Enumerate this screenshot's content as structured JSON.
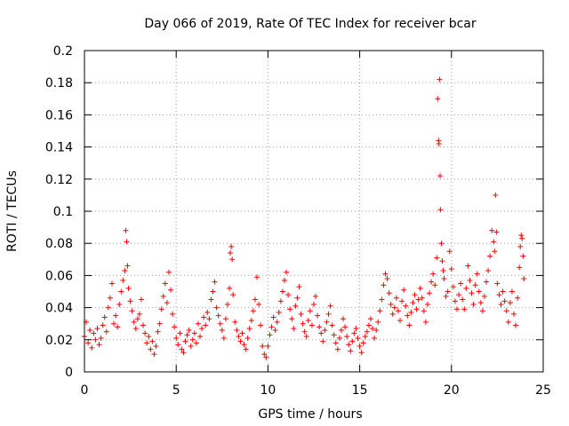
{
  "chart_data": {
    "type": "scatter",
    "title": "Day 066 of 2019, Rate Of TEC Index for receiver bcar",
    "xlabel": "GPS time / hours",
    "ylabel": "ROTI / TECUs",
    "xlim": [
      0,
      25
    ],
    "ylim": [
      0,
      0.2
    ],
    "xticks": [
      0,
      5,
      10,
      15,
      20,
      25
    ],
    "yticks": [
      0,
      0.02,
      0.04,
      0.06,
      0.08,
      0.1,
      0.12,
      0.14,
      0.16,
      0.18,
      0.2
    ],
    "xtick_labels": [
      "0",
      "5",
      "10",
      "15",
      "20",
      "25"
    ],
    "ytick_labels": [
      "0",
      "0.02",
      "0.04",
      "0.06",
      "0.08",
      "0.1",
      "0.12",
      "0.14",
      "0.16",
      "0.18",
      "0.2"
    ],
    "grid": true,
    "marker": "+",
    "color": "#ff0000",
    "series": [
      {
        "name": "ROTI",
        "points": [
          [
            0.0,
            0.022
          ],
          [
            0.1,
            0.031
          ],
          [
            0.2,
            0.018
          ],
          [
            0.3,
            0.026
          ],
          [
            0.4,
            0.015
          ],
          [
            0.5,
            0.024
          ],
          [
            0.6,
            0.02
          ],
          [
            0.7,
            0.027
          ],
          [
            0.8,
            0.017
          ],
          [
            0.9,
            0.021
          ],
          [
            1.0,
            0.029
          ],
          [
            1.1,
            0.034
          ],
          [
            1.2,
            0.025
          ],
          [
            1.3,
            0.04
          ],
          [
            1.4,
            0.046
          ],
          [
            1.5,
            0.055
          ],
          [
            1.6,
            0.03
          ],
          [
            1.7,
            0.035
          ],
          [
            1.8,
            0.028
          ],
          [
            1.9,
            0.042
          ],
          [
            2.0,
            0.05
          ],
          [
            2.1,
            0.057
          ],
          [
            2.2,
            0.063
          ],
          [
            2.25,
            0.088
          ],
          [
            2.3,
            0.081
          ],
          [
            2.35,
            0.066
          ],
          [
            2.4,
            0.052
          ],
          [
            2.5,
            0.044
          ],
          [
            2.6,
            0.038
          ],
          [
            2.7,
            0.031
          ],
          [
            2.8,
            0.027
          ],
          [
            2.9,
            0.033
          ],
          [
            3.0,
            0.036
          ],
          [
            3.1,
            0.045
          ],
          [
            3.2,
            0.029
          ],
          [
            3.3,
            0.024
          ],
          [
            3.4,
            0.018
          ],
          [
            3.5,
            0.022
          ],
          [
            3.6,
            0.014
          ],
          [
            3.7,
            0.019
          ],
          [
            3.8,
            0.011
          ],
          [
            3.9,
            0.016
          ],
          [
            4.0,
            0.025
          ],
          [
            4.1,
            0.03
          ],
          [
            4.2,
            0.039
          ],
          [
            4.3,
            0.047
          ],
          [
            4.4,
            0.055
          ],
          [
            4.5,
            0.043
          ],
          [
            4.6,
            0.062
          ],
          [
            4.7,
            0.051
          ],
          [
            4.8,
            0.036
          ],
          [
            4.9,
            0.028
          ],
          [
            5.0,
            0.021
          ],
          [
            5.1,
            0.017
          ],
          [
            5.2,
            0.024
          ],
          [
            5.3,
            0.014
          ],
          [
            5.4,
            0.012
          ],
          [
            5.5,
            0.019
          ],
          [
            5.6,
            0.023
          ],
          [
            5.7,
            0.026
          ],
          [
            5.8,
            0.016
          ],
          [
            5.9,
            0.02
          ],
          [
            6.0,
            0.024
          ],
          [
            6.1,
            0.018
          ],
          [
            6.2,
            0.03
          ],
          [
            6.3,
            0.022
          ],
          [
            6.4,
            0.027
          ],
          [
            6.5,
            0.034
          ],
          [
            6.6,
            0.029
          ],
          [
            6.7,
            0.037
          ],
          [
            6.8,
            0.033
          ],
          [
            6.9,
            0.045
          ],
          [
            7.0,
            0.05
          ],
          [
            7.1,
            0.056
          ],
          [
            7.2,
            0.04
          ],
          [
            7.3,
            0.035
          ],
          [
            7.4,
            0.03
          ],
          [
            7.5,
            0.026
          ],
          [
            7.6,
            0.021
          ],
          [
            7.7,
            0.033
          ],
          [
            7.8,
            0.042
          ],
          [
            7.9,
            0.052
          ],
          [
            7.95,
            0.074
          ],
          [
            8.0,
            0.078
          ],
          [
            8.05,
            0.07
          ],
          [
            8.1,
            0.048
          ],
          [
            8.2,
            0.031
          ],
          [
            8.3,
            0.026
          ],
          [
            8.4,
            0.022
          ],
          [
            8.5,
            0.019
          ],
          [
            8.6,
            0.024
          ],
          [
            8.7,
            0.017
          ],
          [
            8.8,
            0.014
          ],
          [
            8.9,
            0.021
          ],
          [
            9.0,
            0.027
          ],
          [
            9.1,
            0.032
          ],
          [
            9.2,
            0.038
          ],
          [
            9.3,
            0.045
          ],
          [
            9.4,
            0.059
          ],
          [
            9.5,
            0.042
          ],
          [
            9.6,
            0.029
          ],
          [
            9.7,
            0.016
          ],
          [
            9.8,
            0.011
          ],
          [
            9.9,
            0.009
          ],
          [
            10.0,
            0.016
          ],
          [
            10.1,
            0.023
          ],
          [
            10.2,
            0.028
          ],
          [
            10.3,
            0.034
          ],
          [
            10.4,
            0.026
          ],
          [
            10.5,
            0.031
          ],
          [
            10.6,
            0.037
          ],
          [
            10.7,
            0.044
          ],
          [
            10.8,
            0.05
          ],
          [
            10.9,
            0.057
          ],
          [
            11.0,
            0.062
          ],
          [
            11.1,
            0.048
          ],
          [
            11.2,
            0.039
          ],
          [
            11.3,
            0.033
          ],
          [
            11.4,
            0.027
          ],
          [
            11.5,
            0.041
          ],
          [
            11.6,
            0.046
          ],
          [
            11.7,
            0.053
          ],
          [
            11.8,
            0.036
          ],
          [
            11.9,
            0.03
          ],
          [
            12.0,
            0.025
          ],
          [
            12.1,
            0.022
          ],
          [
            12.2,
            0.032
          ],
          [
            12.3,
            0.038
          ],
          [
            12.4,
            0.029
          ],
          [
            12.5,
            0.042
          ],
          [
            12.6,
            0.047
          ],
          [
            12.7,
            0.035
          ],
          [
            12.8,
            0.028
          ],
          [
            12.9,
            0.024
          ],
          [
            13.0,
            0.019
          ],
          [
            13.1,
            0.026
          ],
          [
            13.2,
            0.031
          ],
          [
            13.3,
            0.036
          ],
          [
            13.4,
            0.041
          ],
          [
            13.5,
            0.029
          ],
          [
            13.6,
            0.023
          ],
          [
            13.7,
            0.018
          ],
          [
            13.8,
            0.014
          ],
          [
            13.9,
            0.021
          ],
          [
            14.0,
            0.026
          ],
          [
            14.1,
            0.033
          ],
          [
            14.2,
            0.028
          ],
          [
            14.3,
            0.022
          ],
          [
            14.4,
            0.017
          ],
          [
            14.5,
            0.013
          ],
          [
            14.6,
            0.019
          ],
          [
            14.7,
            0.024
          ],
          [
            14.8,
            0.027
          ],
          [
            14.9,
            0.021
          ],
          [
            15.0,
            0.016
          ],
          [
            15.1,
            0.012
          ],
          [
            15.2,
            0.018
          ],
          [
            15.3,
            0.022
          ],
          [
            15.4,
            0.025
          ],
          [
            15.5,
            0.029
          ],
          [
            15.6,
            0.033
          ],
          [
            15.7,
            0.027
          ],
          [
            15.8,
            0.021
          ],
          [
            15.9,
            0.026
          ],
          [
            16.0,
            0.031
          ],
          [
            16.1,
            0.038
          ],
          [
            16.2,
            0.045
          ],
          [
            16.3,
            0.054
          ],
          [
            16.4,
            0.061
          ],
          [
            16.5,
            0.058
          ],
          [
            16.6,
            0.049
          ],
          [
            16.7,
            0.042
          ],
          [
            16.8,
            0.036
          ],
          [
            16.9,
            0.04
          ],
          [
            17.0,
            0.046
          ],
          [
            17.1,
            0.038
          ],
          [
            17.2,
            0.032
          ],
          [
            17.3,
            0.044
          ],
          [
            17.4,
            0.051
          ],
          [
            17.5,
            0.041
          ],
          [
            17.6,
            0.035
          ],
          [
            17.7,
            0.029
          ],
          [
            17.8,
            0.037
          ],
          [
            17.9,
            0.043
          ],
          [
            18.0,
            0.048
          ],
          [
            18.1,
            0.039
          ],
          [
            18.2,
            0.045
          ],
          [
            18.3,
            0.052
          ],
          [
            18.4,
            0.046
          ],
          [
            18.5,
            0.038
          ],
          [
            18.6,
            0.031
          ],
          [
            18.7,
            0.042
          ],
          [
            18.8,
            0.049
          ],
          [
            18.9,
            0.056
          ],
          [
            19.0,
            0.061
          ],
          [
            19.1,
            0.054
          ],
          [
            19.2,
            0.071
          ],
          [
            19.25,
            0.17
          ],
          [
            19.3,
            0.144
          ],
          [
            19.32,
            0.142
          ],
          [
            19.35,
            0.182
          ],
          [
            19.38,
            0.122
          ],
          [
            19.4,
            0.101
          ],
          [
            19.45,
            0.08
          ],
          [
            19.5,
            0.069
          ],
          [
            19.55,
            0.063
          ],
          [
            19.6,
            0.058
          ],
          [
            19.7,
            0.047
          ],
          [
            19.8,
            0.05
          ],
          [
            19.9,
            0.075
          ],
          [
            20.0,
            0.064
          ],
          [
            20.1,
            0.053
          ],
          [
            20.2,
            0.044
          ],
          [
            20.3,
            0.039
          ],
          [
            20.4,
            0.048
          ],
          [
            20.5,
            0.055
          ],
          [
            20.6,
            0.045
          ],
          [
            20.7,
            0.039
          ],
          [
            20.8,
            0.052
          ],
          [
            20.9,
            0.066
          ],
          [
            21.0,
            0.057
          ],
          [
            21.1,
            0.049
          ],
          [
            21.2,
            0.042
          ],
          [
            21.3,
            0.054
          ],
          [
            21.4,
            0.061
          ],
          [
            21.5,
            0.05
          ],
          [
            21.6,
            0.043
          ],
          [
            21.7,
            0.038
          ],
          [
            21.8,
            0.047
          ],
          [
            21.9,
            0.056
          ],
          [
            22.0,
            0.063
          ],
          [
            22.1,
            0.072
          ],
          [
            22.2,
            0.088
          ],
          [
            22.3,
            0.081
          ],
          [
            22.35,
            0.075
          ],
          [
            22.4,
            0.11
          ],
          [
            22.45,
            0.087
          ],
          [
            22.5,
            0.055
          ],
          [
            22.6,
            0.048
          ],
          [
            22.7,
            0.042
          ],
          [
            22.8,
            0.05
          ],
          [
            22.9,
            0.044
          ],
          [
            23.0,
            0.038
          ],
          [
            23.1,
            0.031
          ],
          [
            23.2,
            0.043
          ],
          [
            23.3,
            0.05
          ],
          [
            23.4,
            0.036
          ],
          [
            23.5,
            0.029
          ],
          [
            23.6,
            0.046
          ],
          [
            23.7,
            0.065
          ],
          [
            23.75,
            0.078
          ],
          [
            23.8,
            0.085
          ],
          [
            23.85,
            0.083
          ],
          [
            23.9,
            0.072
          ],
          [
            23.95,
            0.058
          ]
        ]
      }
    ]
  }
}
